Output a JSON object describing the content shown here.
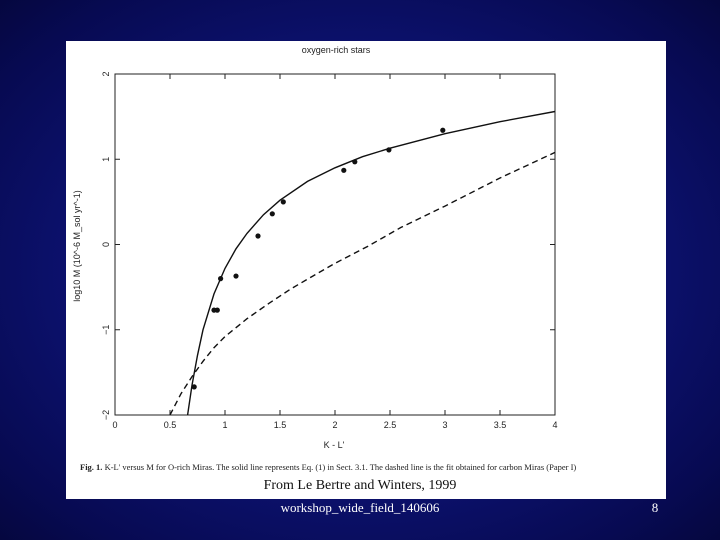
{
  "slide": {
    "source_text": "From Le Bertre and Winters, 1999",
    "footer": "workshop_wide_field_140606",
    "slide_number": "8"
  },
  "figure": {
    "caption_prefix": "Fig. 1.",
    "caption_text": " K-L' versus M for O-rich Miras. The solid line represents Eq. (1) in Sect. 3.1. The dashed line is the fit obtained for carbon Miras (Paper I)"
  },
  "chart_data": {
    "type": "scatter",
    "title": "oxygen-rich stars",
    "xlabel": "K - L'",
    "ylabel": "log10 M (10^-6 M_sol yr^-1)",
    "xlim": [
      0,
      4
    ],
    "ylim": [
      -2,
      2
    ],
    "x_ticks": [
      "0",
      "0.5",
      "1",
      "1.5",
      "2",
      "2.5",
      "3",
      "3.5",
      "4"
    ],
    "y_ticks": [
      "-2",
      "-1",
      "0",
      "1",
      "2"
    ],
    "grid": false,
    "points": [
      {
        "x": 0.72,
        "y": -1.67
      },
      {
        "x": 0.9,
        "y": -0.77
      },
      {
        "x": 0.93,
        "y": -0.77
      },
      {
        "x": 0.96,
        "y": -0.4
      },
      {
        "x": 1.1,
        "y": -0.37
      },
      {
        "x": 1.3,
        "y": 0.1
      },
      {
        "x": 1.43,
        "y": 0.36
      },
      {
        "x": 1.53,
        "y": 0.5
      },
      {
        "x": 2.08,
        "y": 0.87
      },
      {
        "x": 2.18,
        "y": 0.97
      },
      {
        "x": 2.49,
        "y": 1.11
      },
      {
        "x": 2.98,
        "y": 1.34
      }
    ],
    "series": [
      {
        "style": "solid",
        "x": [
          0.66,
          0.7,
          0.75,
          0.8,
          0.9,
          1.0,
          1.1,
          1.2,
          1.35,
          1.5,
          1.75,
          2.0,
          2.25,
          2.5,
          3.0,
          3.5,
          4.0
        ],
        "y": [
          -2.0,
          -1.65,
          -1.3,
          -1.0,
          -0.58,
          -0.28,
          -0.05,
          0.13,
          0.35,
          0.52,
          0.74,
          0.9,
          1.03,
          1.13,
          1.3,
          1.44,
          1.56
        ]
      },
      {
        "style": "dashed",
        "x": [
          0.5,
          0.6,
          0.7,
          0.8,
          0.9,
          1.0,
          1.2,
          1.4,
          1.6,
          1.8,
          2.0,
          2.3,
          2.6,
          3.0,
          3.5,
          4.0
        ],
        "y": [
          -2.0,
          -1.75,
          -1.55,
          -1.37,
          -1.21,
          -1.08,
          -0.87,
          -0.69,
          -0.52,
          -0.37,
          -0.22,
          -0.02,
          0.2,
          0.45,
          0.78,
          1.08
        ]
      }
    ]
  }
}
